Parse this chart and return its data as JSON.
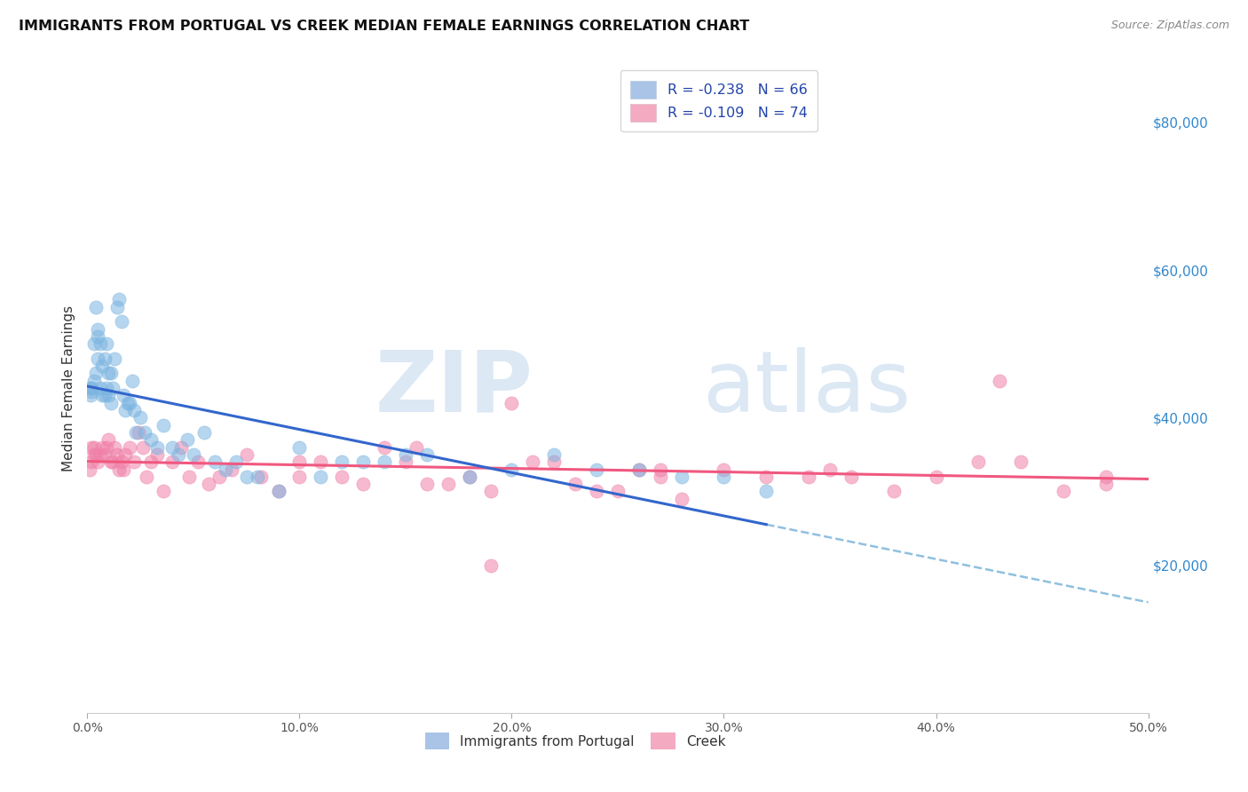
{
  "title": "IMMIGRANTS FROM PORTUGAL VS CREEK MEDIAN FEMALE EARNINGS CORRELATION CHART",
  "source": "Source: ZipAtlas.com",
  "ylabel": "Median Female Earnings",
  "right_yticks": [
    "$80,000",
    "$60,000",
    "$40,000",
    "$20,000"
  ],
  "right_ytick_vals": [
    80000,
    60000,
    40000,
    20000
  ],
  "legend_entry1": "R = -0.238   N = 66",
  "legend_entry2": "R = -0.109   N = 74",
  "legend_color1": "#aac4e8",
  "legend_color2": "#f4aac0",
  "scatter_color1": "#7ab4e0",
  "scatter_color2": "#f080a8",
  "line_color1": "#3366cc",
  "line_color2": "#f05880",
  "dashed_line_color": "#90c0e0",
  "watermark_zip": "ZIP",
  "watermark_atlas": "atlas",
  "watermark_color": "#dce8f4",
  "xlim": [
    0.0,
    0.5
  ],
  "ylim": [
    0,
    88000
  ],
  "grid_color": "#dde4ee",
  "xtick_labels": [
    "0.0%",
    "10.0%",
    "20.0%",
    "30.0%",
    "40.0%",
    "50.0%"
  ],
  "xtick_vals": [
    0.0,
    0.1,
    0.2,
    0.3,
    0.4,
    0.5
  ],
  "portugal_x": [
    0.0015,
    0.0015,
    0.002,
    0.002,
    0.003,
    0.003,
    0.004,
    0.004,
    0.005,
    0.005,
    0.005,
    0.006,
    0.006,
    0.007,
    0.007,
    0.008,
    0.008,
    0.009,
    0.009,
    0.01,
    0.01,
    0.011,
    0.011,
    0.012,
    0.013,
    0.014,
    0.015,
    0.016,
    0.017,
    0.018,
    0.019,
    0.02,
    0.021,
    0.022,
    0.023,
    0.025,
    0.027,
    0.03,
    0.033,
    0.036,
    0.04,
    0.043,
    0.047,
    0.05,
    0.055,
    0.06,
    0.065,
    0.07,
    0.075,
    0.08,
    0.09,
    0.1,
    0.11,
    0.12,
    0.13,
    0.14,
    0.15,
    0.16,
    0.18,
    0.2,
    0.22,
    0.24,
    0.26,
    0.28,
    0.3,
    0.32
  ],
  "portugal_y": [
    44000,
    43000,
    44000,
    43500,
    45000,
    50000,
    55000,
    46000,
    52000,
    48000,
    51000,
    50000,
    44000,
    47000,
    43000,
    48000,
    43000,
    44000,
    50000,
    46000,
    43000,
    46000,
    42000,
    44000,
    48000,
    55000,
    56000,
    53000,
    43000,
    41000,
    42000,
    42000,
    45000,
    41000,
    38000,
    40000,
    38000,
    37000,
    36000,
    39000,
    36000,
    35000,
    37000,
    35000,
    38000,
    34000,
    33000,
    34000,
    32000,
    32000,
    30000,
    36000,
    32000,
    34000,
    34000,
    34000,
    35000,
    35000,
    32000,
    33000,
    35000,
    33000,
    33000,
    32000,
    32000,
    30000
  ],
  "creek_x": [
    0.001,
    0.002,
    0.002,
    0.003,
    0.003,
    0.004,
    0.005,
    0.006,
    0.007,
    0.008,
    0.009,
    0.01,
    0.011,
    0.012,
    0.013,
    0.014,
    0.015,
    0.016,
    0.017,
    0.018,
    0.02,
    0.022,
    0.024,
    0.026,
    0.028,
    0.03,
    0.033,
    0.036,
    0.04,
    0.044,
    0.048,
    0.052,
    0.057,
    0.062,
    0.068,
    0.075,
    0.082,
    0.09,
    0.1,
    0.11,
    0.12,
    0.13,
    0.14,
    0.15,
    0.155,
    0.16,
    0.17,
    0.18,
    0.19,
    0.2,
    0.21,
    0.22,
    0.23,
    0.24,
    0.25,
    0.26,
    0.27,
    0.28,
    0.3,
    0.32,
    0.34,
    0.36,
    0.38,
    0.4,
    0.42,
    0.44,
    0.46,
    0.48,
    0.48,
    0.43,
    0.35,
    0.27,
    0.19,
    0.1
  ],
  "creek_y": [
    33000,
    36000,
    34000,
    36000,
    35000,
    35000,
    34000,
    35000,
    36000,
    35000,
    36000,
    37000,
    34000,
    34000,
    36000,
    35000,
    33000,
    34000,
    33000,
    35000,
    36000,
    34000,
    38000,
    36000,
    32000,
    34000,
    35000,
    30000,
    34000,
    36000,
    32000,
    34000,
    31000,
    32000,
    33000,
    35000,
    32000,
    30000,
    32000,
    34000,
    32000,
    31000,
    36000,
    34000,
    36000,
    31000,
    31000,
    32000,
    30000,
    42000,
    34000,
    34000,
    31000,
    30000,
    30000,
    33000,
    32000,
    29000,
    33000,
    32000,
    32000,
    32000,
    30000,
    32000,
    34000,
    34000,
    30000,
    32000,
    31000,
    45000,
    33000,
    33000,
    20000,
    34000
  ]
}
